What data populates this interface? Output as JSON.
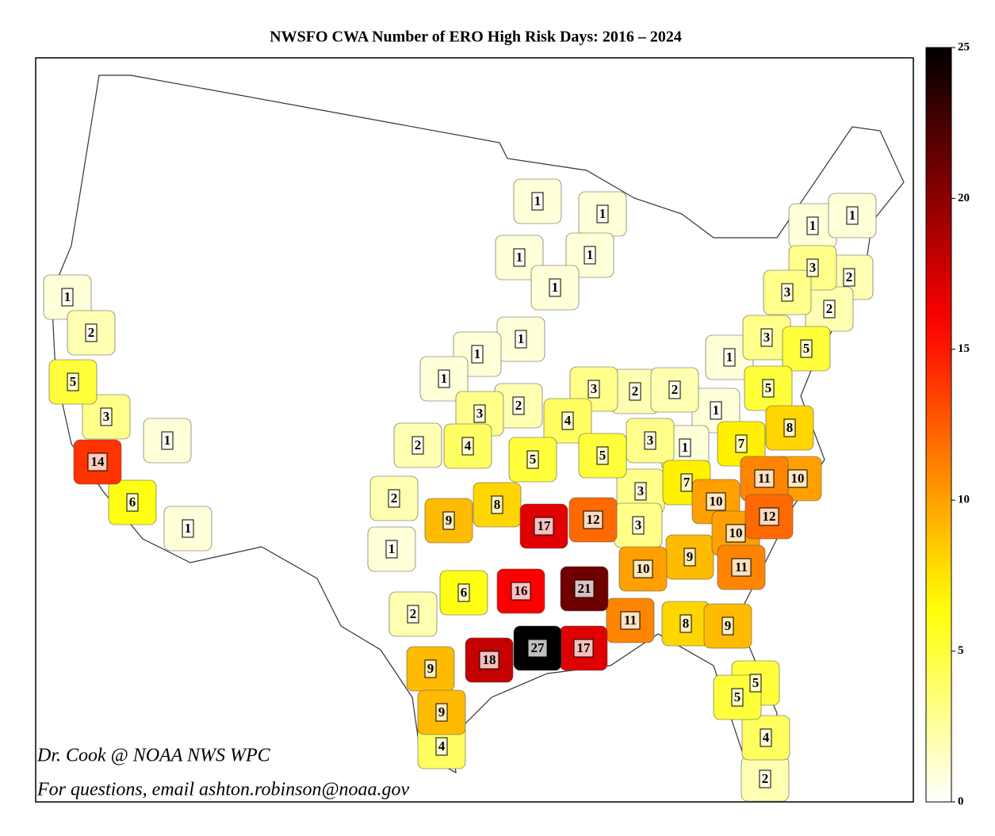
{
  "chart_data": {
    "type": "choropleth",
    "title": "NWSFO CWA Number of ERO High Risk Days: 2016 – 2024",
    "credit": "Dr. Cook @ NOAA NWS WPC",
    "contact": "For questions, email ashton.robinson@noaa.gov",
    "colormap": "hot_r",
    "values": [
      1,
      1,
      1,
      1,
      1,
      1,
      2,
      1,
      1,
      1,
      3,
      5,
      1,
      5,
      3,
      2,
      2,
      5,
      3,
      2,
      4,
      1,
      3,
      1,
      2,
      4,
      5,
      5,
      3,
      1,
      7,
      8,
      14,
      11,
      10,
      7,
      3,
      2,
      9,
      8,
      17,
      12,
      6,
      10,
      12,
      10,
      3,
      1,
      1,
      9,
      10,
      11,
      6,
      16,
      21,
      2,
      11,
      8,
      9,
      9,
      18,
      27,
      17,
      5,
      5,
      9,
      4,
      4,
      2,
      1,
      1,
      3,
      2,
      3,
      2
    ],
    "clim": [
      0,
      25
    ],
    "colorbar_ticks": [
      0,
      5,
      10,
      15,
      20,
      25
    ]
  }
}
